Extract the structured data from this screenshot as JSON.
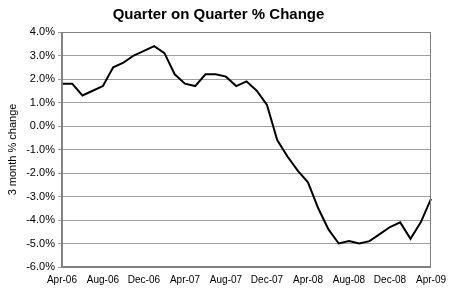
{
  "chart_data": {
    "type": "line",
    "title": "Quarter on Quarter % Change",
    "y_label": "3 month % change",
    "categories": [
      "Apr-06",
      null,
      null,
      null,
      "Aug-06",
      null,
      null,
      null,
      "Dec-06",
      null,
      null,
      null,
      "Apr-07",
      null,
      null,
      null,
      "Aug-07",
      null,
      null,
      null,
      "Dec-07",
      null,
      null,
      null,
      "Apr-08",
      null,
      null,
      null,
      "Aug-08",
      null,
      null,
      null,
      "Dec-08",
      null,
      null,
      null,
      "Apr-09"
    ],
    "values": [
      1.8,
      1.8,
      1.3,
      1.5,
      1.7,
      2.5,
      2.7,
      3.0,
      3.2,
      3.4,
      3.1,
      2.2,
      1.8,
      1.7,
      2.2,
      2.2,
      2.1,
      1.7,
      1.9,
      1.5,
      0.9,
      -0.6,
      -1.3,
      -1.9,
      -2.4,
      -3.5,
      -4.4,
      -5.0,
      -4.9,
      -5.0,
      -4.9,
      -4.6,
      -4.3,
      -4.1,
      -4.8,
      -4.1,
      -3.1
    ],
    "color": "#000000",
    "ylim": [
      -6,
      4
    ],
    "yticks": [
      {
        "value": -6,
        "label": "-6.0%"
      },
      {
        "value": -5,
        "label": "-5.0%"
      },
      {
        "value": -4,
        "label": "-4.0%"
      },
      {
        "value": -3,
        "label": "-3.0%"
      },
      {
        "value": -2,
        "label": "-2.0%"
      },
      {
        "value": -1,
        "label": "-1.0%"
      },
      {
        "value": 0,
        "label": "0.0%"
      },
      {
        "value": 1,
        "label": "1.0%"
      },
      {
        "value": 2,
        "label": "2.0%"
      },
      {
        "value": 3,
        "label": "3.0%"
      },
      {
        "value": 4,
        "label": "4.0%"
      }
    ],
    "grid": true,
    "marker": "none",
    "line_style": "solid"
  }
}
